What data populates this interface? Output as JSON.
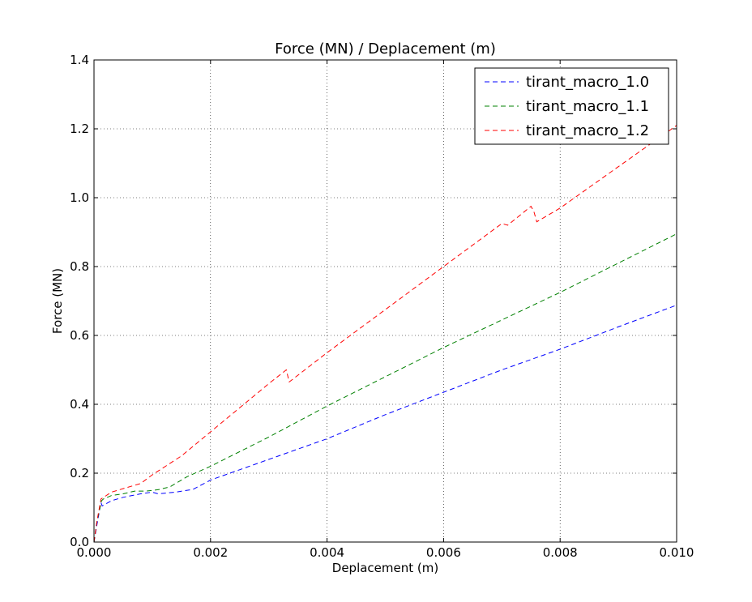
{
  "chart_data": {
    "type": "line",
    "title": "Force (MN) / Deplacement (m)",
    "xlabel": "Deplacement (m)",
    "ylabel": "Force (MN)",
    "xlim": [
      0,
      0.01
    ],
    "ylim": [
      0,
      1.4
    ],
    "grid": true,
    "legend": "top-right",
    "xticks": [
      "0.000",
      "0.002",
      "0.004",
      "0.006",
      "0.008",
      "0.010"
    ],
    "yticks": [
      "0.0",
      "0.2",
      "0.4",
      "0.6",
      "0.8",
      "1.0",
      "1.2",
      "1.4"
    ],
    "series": [
      {
        "name": "tirant_macro_1.0",
        "color": "#0000ff",
        "x": [
          0,
          5e-05,
          0.00012,
          0.00014,
          0.0003,
          0.0005,
          0.0008,
          0.001,
          0.0011,
          0.0014,
          0.0017,
          0.002,
          0.003,
          0.004,
          0.005,
          0.006,
          0.007,
          0.008,
          0.009,
          0.01
        ],
        "y": [
          0,
          0.05,
          0.115,
          0.105,
          0.12,
          0.13,
          0.14,
          0.145,
          0.14,
          0.145,
          0.153,
          0.18,
          0.24,
          0.3,
          0.37,
          0.435,
          0.5,
          0.56,
          0.625,
          0.688
        ]
      },
      {
        "name": "tirant_macro_1.1",
        "color": "#008000",
        "x": [
          0,
          5e-05,
          0.00013,
          0.00016,
          0.0003,
          0.0005,
          0.0007,
          0.0009,
          0.0011,
          0.0013,
          0.0016,
          0.002,
          0.003,
          0.004,
          0.005,
          0.006,
          0.007,
          0.008,
          0.009,
          0.01
        ],
        "y": [
          0,
          0.06,
          0.12,
          0.125,
          0.135,
          0.14,
          0.148,
          0.148,
          0.152,
          0.16,
          0.19,
          0.22,
          0.305,
          0.395,
          0.48,
          0.565,
          0.645,
          0.725,
          0.81,
          0.895
        ]
      },
      {
        "name": "tirant_macro_1.2",
        "color": "#ff0000",
        "x": [
          0,
          5e-05,
          0.00012,
          0.0003,
          0.0005,
          0.0008,
          0.001,
          0.0015,
          0.002,
          0.0025,
          0.003,
          0.0033,
          0.00335,
          0.004,
          0.005,
          0.006,
          0.007,
          0.0071,
          0.0075,
          0.00755,
          0.0076,
          0.008,
          0.009,
          0.01
        ],
        "y": [
          0,
          0.06,
          0.125,
          0.145,
          0.155,
          0.17,
          0.195,
          0.25,
          0.32,
          0.39,
          0.46,
          0.5,
          0.465,
          0.55,
          0.675,
          0.8,
          0.925,
          0.92,
          0.975,
          0.96,
          0.93,
          0.97,
          1.09,
          1.21
        ]
      }
    ]
  }
}
